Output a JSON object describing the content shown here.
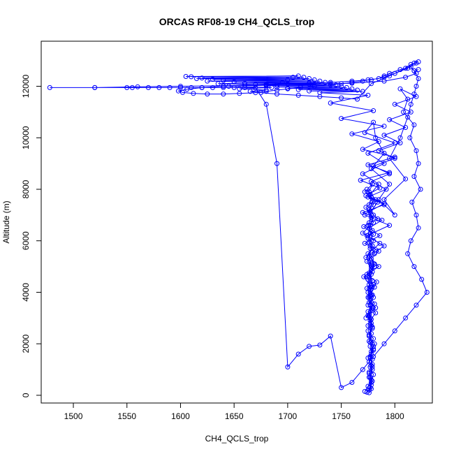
{
  "chart_data": {
    "type": "line",
    "title": "ORCAS RF08-19 CH4_QCLS_trop",
    "xlabel": "CH4_QCLS_trop",
    "ylabel": "Altitude (m)",
    "xlim": [
      1470,
      1835
    ],
    "ylim": [
      -300,
      13750
    ],
    "x_ticks": [
      1500,
      1550,
      1600,
      1650,
      1700,
      1750,
      1800
    ],
    "y_ticks": [
      0,
      2000,
      4000,
      6000,
      8000,
      10000,
      12000
    ],
    "grid": false,
    "markers": "open-circle",
    "line_color": "#0000ff",
    "series": [
      {
        "x": [
          1772,
          1775,
          1778,
          1776,
          1779,
          1777,
          1780,
          1776,
          1778,
          1775,
          1777,
          1779,
          1776,
          1778,
          1777,
          1775,
          1779,
          1778,
          1776,
          1777,
          1780,
          1777,
          1775,
          1778,
          1776,
          1779,
          1777,
          1774,
          1778,
          1776,
          1780,
          1777,
          1775,
          1779,
          1776,
          1778,
          1774,
          1781,
          1776,
          1779,
          1773,
          1782,
          1775,
          1778,
          1771,
          1785,
          1776,
          1790,
          1774,
          1795,
          1772,
          1780,
          1777,
          1785,
          1770,
          1790,
          1775,
          1800,
          1772,
          1780,
          1782,
          1790,
          1778,
          1795,
          1785,
          1800,
          1790,
          1810,
          1795,
          1805,
          1812,
          1815,
          1818,
          1820,
          1822,
          1818,
          1815,
          1805,
          1795,
          1790,
          1785,
          1775,
          1770,
          1760,
          1750,
          1740,
          1725,
          1712,
          1700,
          1690,
          1680,
          1670,
          1655,
          1640,
          1625,
          1612,
          1602,
          1598,
          1606,
          1620,
          1640,
          1660,
          1680,
          1700,
          1720,
          1740,
          1760,
          1778,
          1790,
          1800,
          1812,
          1818,
          1822
        ],
        "y": [
          150,
          350,
          600,
          900,
          1200,
          1500,
          1800,
          2100,
          2400,
          2700,
          3000,
          3300,
          3600,
          3900,
          4200,
          4500,
          4800,
          5100,
          5400,
          5700,
          6000,
          6300,
          6600,
          6900,
          7200,
          7500,
          7800,
          8000,
          7700,
          7400,
          7000,
          6600,
          6200,
          5800,
          5400,
          5000,
          4600,
          4200,
          3800,
          3400,
          3000,
          3400,
          3800,
          4200,
          4600,
          5000,
          5400,
          5800,
          6200,
          6600,
          7000,
          7400,
          7800,
          8200,
          8600,
          9000,
          9400,
          9800,
          10200,
          10600,
          10000,
          9400,
          8800,
          8200,
          7600,
          7000,
          7600,
          8400,
          9200,
          10000,
          10800,
          11300,
          11700,
          12000,
          12300,
          12600,
          12750,
          12650,
          12500,
          12400,
          12300,
          12250,
          12200,
          12150,
          12100,
          12050,
          12000,
          11950,
          11900,
          11850,
          11800,
          11750,
          11720,
          11700,
          11700,
          11720,
          11760,
          11820,
          11880,
          11950,
          12000,
          12050,
          12080,
          12100,
          12120,
          12150,
          12200,
          12250,
          12350,
          12500,
          12700,
          12900,
          12950
        ]
      },
      {
        "x": [
          1776,
          1778,
          1780,
          1777,
          1779,
          1778,
          1781,
          1776,
          1779,
          1777,
          1782,
          1775,
          1780,
          1777,
          1783,
          1774,
          1781,
          1778,
          1785,
          1772,
          1786,
          1776,
          1788,
          1770,
          1790,
          1775,
          1792,
          1778,
          1795,
          1780,
          1800,
          1785,
          1805,
          1790,
          1810,
          1795,
          1815,
          1800,
          1820,
          1805,
          1812,
          1808,
          1818,
          1814,
          1820,
          1822,
          1818,
          1824,
          1816,
          1820,
          1822,
          1815,
          1812,
          1818,
          1825,
          1830,
          1820,
          1810,
          1800,
          1790,
          1780,
          1770,
          1760,
          1750,
          1740,
          1730,
          1720,
          1710,
          1700,
          1690,
          1680,
          1670,
          1660,
          1650,
          1640,
          1630,
          1620,
          1610,
          1600,
          1590,
          1580,
          1570,
          1555,
          1550,
          1520,
          1478,
          1520,
          1560,
          1600,
          1640,
          1680,
          1720,
          1760,
          1790,
          1810,
          1820,
          1818,
          1822
        ],
        "y": [
          200,
          500,
          800,
          1100,
          1400,
          1700,
          2000,
          2300,
          2600,
          2900,
          3200,
          3500,
          3800,
          4100,
          4400,
          4700,
          5000,
          5300,
          5600,
          5900,
          6200,
          6500,
          6800,
          7100,
          7400,
          7700,
          8000,
          8300,
          8600,
          8900,
          9200,
          9500,
          9800,
          10100,
          10400,
          10700,
          11000,
          11300,
          11600,
          11900,
          11500,
          11000,
          10500,
          10000,
          9500,
          9000,
          8500,
          8000,
          7500,
          7000,
          6500,
          6000,
          5500,
          5000,
          4500,
          4000,
          3500,
          3000,
          2500,
          2000,
          1500,
          1000,
          500,
          300,
          2300,
          1950,
          1900,
          1600,
          1100,
          9000,
          11300,
          11950,
          11950,
          11950,
          11950,
          11950,
          11950,
          11950,
          11950,
          11950,
          11950,
          11950,
          11950,
          11950,
          11950,
          11950,
          11950,
          11980,
          12000,
          12020,
          12050,
          12080,
          12120,
          12200,
          12350,
          12500,
          12600,
          12650
        ]
      },
      {
        "x": [
          1774,
          1777,
          1779,
          1776,
          1778,
          1775,
          1780,
          1777,
          1776,
          1779,
          1778,
          1775,
          1781,
          1777,
          1774,
          1779,
          1776,
          1778,
          1773,
          1782,
          1776,
          1780,
          1771,
          1784,
          1777,
          1790,
          1773,
          1786,
          1768,
          1795,
          1775,
          1800,
          1770,
          1785,
          1760,
          1790,
          1750,
          1780,
          1740,
          1775,
          1730,
          1770,
          1720,
          1765,
          1710,
          1760,
          1700,
          1755,
          1690,
          1750,
          1680,
          1745,
          1670,
          1740,
          1660,
          1735,
          1650,
          1730,
          1640,
          1725,
          1630,
          1720,
          1620,
          1715,
          1610,
          1710,
          1605,
          1705,
          1615,
          1700,
          1625,
          1695,
          1635,
          1690,
          1645,
          1685,
          1655,
          1680,
          1665,
          1675,
          1690,
          1710,
          1730,
          1750,
          1765,
          1778,
          1795,
          1810,
          1815,
          1820
        ],
        "y": [
          120,
          300,
          550,
          850,
          1150,
          1450,
          1750,
          2050,
          2350,
          2650,
          2950,
          3250,
          3550,
          3850,
          4150,
          4450,
          4750,
          5050,
          5350,
          5650,
          5950,
          6250,
          6550,
          6850,
          7150,
          7450,
          7750,
          8050,
          8350,
          8650,
          8950,
          9250,
          9550,
          9850,
          10150,
          10450,
          10750,
          11050,
          11350,
          11650,
          11750,
          11800,
          11820,
          11850,
          11870,
          11900,
          11920,
          11950,
          11970,
          12000,
          12020,
          12050,
          12070,
          12100,
          12120,
          12150,
          12170,
          12200,
          12220,
          12250,
          12270,
          12300,
          12320,
          12350,
          12370,
          12400,
          12380,
          12350,
          12300,
          12250,
          12200,
          12150,
          12100,
          12050,
          12000,
          11950,
          11900,
          11850,
          11800,
          11750,
          11700,
          11650,
          11600,
          11550,
          11500,
          12100,
          12400,
          12700,
          12850,
          12900
        ]
      },
      {
        "x": [
          1776,
          1778,
          1777,
          1779,
          1776,
          1778,
          1777,
          1780,
          1775,
          1778,
          1776,
          1779,
          1777,
          1775,
          1780,
          1776,
          1778,
          1774,
          1781,
          1777,
          1775,
          1779,
          1776,
          1778,
          1773,
          1782,
          1776,
          1779,
          1772,
          1784,
          1777,
          1780,
          1770,
          1786,
          1775,
          1781,
          1778,
          1776,
          1779,
          1777,
          1775,
          1778,
          1776,
          1780,
          1777,
          1779,
          1776,
          1778
        ],
        "y": [
          100,
          400,
          700,
          1000,
          1300,
          1600,
          1900,
          2200,
          2500,
          2800,
          3100,
          3400,
          3700,
          4000,
          4300,
          4600,
          4900,
          5200,
          5500,
          5800,
          6100,
          6400,
          6700,
          7000,
          7300,
          7600,
          7900,
          8200,
          7900,
          7500,
          7100,
          6700,
          6300,
          5900,
          5500,
          5100,
          4700,
          4300,
          3900,
          3500,
          3100,
          2700,
          2300,
          1900,
          1500,
          1100,
          700,
          250
        ]
      }
    ]
  }
}
